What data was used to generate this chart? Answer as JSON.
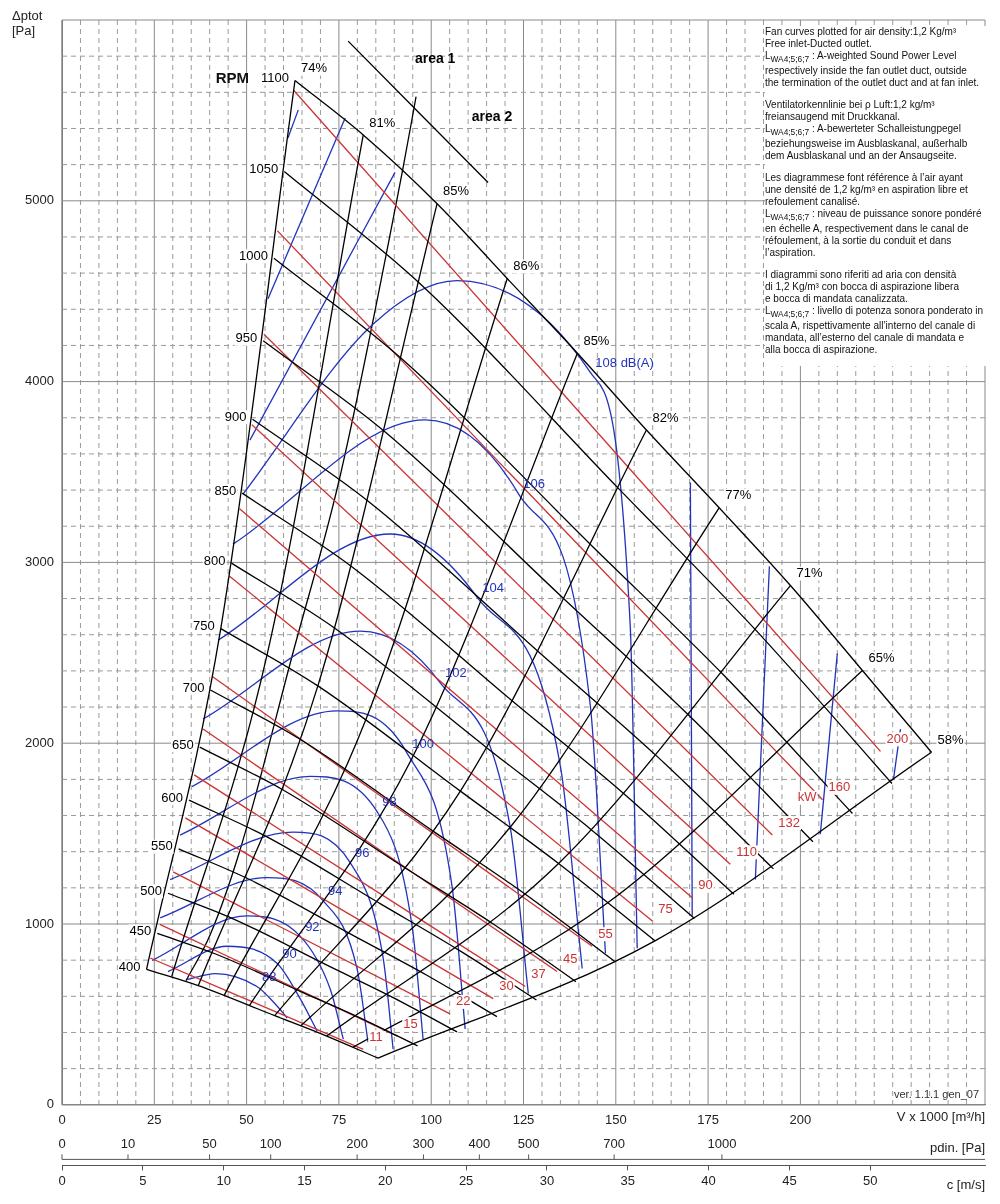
{
  "chart_data": {
    "type": "line",
    "xlabel": "V x 1000 [m³/h]",
    "ylabel": "Δptot\n[Pa]",
    "x2label": "c [m/s]",
    "xlim": [
      0,
      250
    ],
    "ylim": [
      0,
      6000
    ],
    "x2lim": [
      0,
      57.1
    ],
    "xticks": [
      0,
      {
        "value": 5,
        "label": null
      },
      {
        "value": 10,
        "label": null
      },
      {
        "value": 15,
        "label": null
      },
      {
        "value": 20,
        "label": null
      },
      25,
      {
        "value": 30,
        "label": null
      },
      {
        "value": 35,
        "label": null
      },
      {
        "value": 40,
        "label": null
      },
      {
        "value": 45,
        "label": null
      },
      50,
      {
        "value": 55,
        "label": null
      },
      {
        "value": 60,
        "label": null
      },
      {
        "value": 65,
        "label": null
      },
      {
        "value": 70,
        "label": null
      },
      75,
      {
        "value": 80,
        "label": null
      },
      {
        "value": 85,
        "label": null
      },
      {
        "value": 90,
        "label": null
      },
      {
        "value": 95,
        "label": null
      },
      100,
      {
        "value": 105,
        "label": null
      },
      {
        "value": 110,
        "label": null
      },
      {
        "value": 115,
        "label": null
      },
      {
        "value": 120,
        "label": null
      },
      125,
      {
        "value": 130,
        "label": null
      },
      {
        "value": 135,
        "label": null
      },
      {
        "value": 140,
        "label": null
      },
      {
        "value": 145,
        "label": null
      },
      150,
      {
        "value": 155,
        "label": null
      },
      {
        "value": 160,
        "label": null
      },
      {
        "value": 165,
        "label": null
      },
      {
        "value": 170,
        "label": null
      },
      175,
      {
        "value": 180,
        "label": null
      },
      {
        "value": 185,
        "label": null
      },
      {
        "value": 190,
        "label": null
      },
      {
        "value": 195,
        "label": null
      },
      200,
      {
        "value": 205,
        "label": null
      },
      {
        "value": 210,
        "label": null
      },
      {
        "value": 215,
        "label": null
      },
      {
        "value": 220,
        "label": null
      },
      {
        "value": 225,
        "label": null
      },
      {
        "value": 230,
        "label": null
      },
      {
        "value": 235,
        "label": null
      },
      {
        "value": 240,
        "label": null
      },
      {
        "value": 245,
        "label": null
      }
    ],
    "yticks": [
      0,
      {
        "value": 200,
        "label": null
      },
      {
        "value": 400,
        "label": null
      },
      {
        "value": 600,
        "label": null
      },
      {
        "value": 800,
        "label": null
      },
      1000,
      {
        "value": 1200,
        "label": null
      },
      {
        "value": 1400,
        "label": null
      },
      {
        "value": 1600,
        "label": null
      },
      {
        "value": 1800,
        "label": null
      },
      2000,
      {
        "value": 2200,
        "label": null
      },
      {
        "value": 2400,
        "label": null
      },
      {
        "value": 2600,
        "label": null
      },
      {
        "value": 2800,
        "label": null
      },
      3000,
      {
        "value": 3200,
        "label": null
      },
      {
        "value": 3400,
        "label": null
      },
      {
        "value": 3600,
        "label": null
      },
      {
        "value": 3800,
        "label": null
      },
      4000,
      {
        "value": 4200,
        "label": null
      },
      {
        "value": 4400,
        "label": null
      },
      {
        "value": 4600,
        "label": null
      },
      {
        "value": 4800,
        "label": null
      },
      5000,
      {
        "value": 5200,
        "label": null
      },
      {
        "value": 5400,
        "label": null
      },
      {
        "value": 5600,
        "label": null
      },
      {
        "value": 5800,
        "label": null
      }
    ],
    "x2ticks": [
      0,
      5,
      10,
      15,
      20,
      25,
      30,
      35,
      40,
      45,
      50
    ],
    "grid": true,
    "legend": false,
    "marker": "none",
    "series": [
      {
        "color": "#000000",
        "x": [
          22.9,
          36.9,
          57.6,
          71.7,
          85.6
        ],
        "values": [
          749,
          659,
          493,
          380,
          258
        ]
      },
      {
        "color": "#000000",
        "x": [
          25.8,
          41.6,
          64.8,
          80.7,
          96.3
        ],
        "values": [
          948,
          834,
          625,
          481,
          326
        ]
      },
      {
        "color": "#000000",
        "x": [
          28.7,
          46.2,
          71.9,
          89.7,
          107.0
        ],
        "values": [
          1170,
          1030,
          771,
          593,
          403
        ]
      },
      {
        "color": "#000000",
        "x": [
          31.6,
          50.8,
          79.2,
          98.7,
          117.8
        ],
        "values": [
          1416,
          1246,
          933,
          718,
          488
        ]
      },
      {
        "color": "#000000",
        "x": [
          34.4,
          55.4,
          86.4,
          107.6,
          128.5
        ],
        "values": [
          1685,
          1483,
          1110,
          854,
          580
        ]
      },
      {
        "color": "#000000",
        "x": [
          37.3,
          60.0,
          93.5,
          116.6,
          139.2
        ],
        "values": [
          1978,
          1740,
          1303,
          1003,
          681
        ]
      },
      {
        "color": "#000000",
        "x": [
          40.2,
          64.7,
          100.7,
          125.6,
          149.9
        ],
        "values": [
          2294,
          2019,
          1511,
          1163,
          790
        ]
      },
      {
        "color": "#000000",
        "x": [
          43.0,
          69.3,
          107.9,
          134.5,
          160.6
        ],
        "values": [
          2634,
          2317,
          1735,
          1335,
          907
        ]
      },
      {
        "color": "#000000",
        "x": [
          45.9,
          73.9,
          115.1,
          143.5,
          171.3
        ],
        "values": [
          2996,
          2636,
          1974,
          1519,
          1031
        ]
      },
      {
        "color": "#000000",
        "x": [
          48.8,
          78.5,
          122.3,
          152.5,
          182.0
        ],
        "values": [
          3383,
          2976,
          2228,
          1715,
          1164
        ]
      },
      {
        "color": "#000000",
        "x": [
          51.6,
          83.1,
          129.5,
          161.4,
          192.7
        ],
        "values": [
          3792,
          3336,
          2498,
          1923,
          1305
        ]
      },
      {
        "color": "#000000",
        "x": [
          54.5,
          87.7,
          136.7,
          170.4,
          203.4
        ],
        "values": [
          4226,
          3718,
          2784,
          2142,
          1455
        ]
      },
      {
        "color": "#000000",
        "x": [
          57.4,
          92.4,
          143.9,
          179.4,
          214.1
        ],
        "values": [
          4682,
          4119,
          3084,
          2373,
          1611
        ]
      },
      {
        "color": "#000000",
        "x": [
          60.2,
          97.0,
          151.1,
          188.3,
          224.8
        ],
        "values": [
          5162,
          4541,
          3401,
          2617,
          1777
        ]
      },
      {
        "color": "#000000",
        "x": [
          63.1,
          81.6,
          101.6,
          120.6,
          139.6,
          158.3,
          178.0,
          197.3,
          216.8,
          235.5
        ],
        "values": [
          5665,
          5364,
          4984,
          4570,
          4157,
          3732,
          3302,
          2872,
          2402,
          1950
        ]
      },
      {
        "color": "#000000",
        "x": [
          22.9,
          43.0,
          63.1
        ],
        "values": [
          749,
          2634,
          5665
        ]
      },
      {
        "color": "#000000",
        "x": [
          29.7,
          55.6,
          81.6
        ],
        "values": [
          709,
          2494,
          5364
        ]
      },
      {
        "color": "#000000",
        "x": [
          36.9,
          69.3,
          101.6
        ],
        "values": [
          659,
          2317,
          4984
        ]
      },
      {
        "color": "#000000",
        "x": [
          43.9,
          82.2,
          120.6
        ],
        "values": [
          604,
          2125,
          4570
        ]
      },
      {
        "color": "#000000",
        "x": [
          50.8,
          95.2,
          139.6
        ],
        "values": [
          550,
          1933,
          4157
        ]
      },
      {
        "color": "#000000",
        "x": [
          57.6,
          107.9,
          158.3
        ],
        "values": [
          493,
          1735,
          3732
        ]
      },
      {
        "color": "#000000",
        "x": [
          64.7,
          121.4,
          178.0
        ],
        "values": [
          437,
          1535,
          3302
        ]
      },
      {
        "color": "#000000",
        "x": [
          71.7,
          134.5,
          197.3
        ],
        "values": [
          380,
          1335,
          2872
        ]
      },
      {
        "color": "#000000",
        "x": [
          78.8,
          147.8,
          216.8
        ],
        "values": [
          318,
          1117,
          2402
        ]
      },
      {
        "color": "#000000",
        "x": [
          85.6,
          160.6,
          235.5
        ],
        "values": [
          258,
          907,
          1950
        ]
      },
      {
        "color": "#cc3333",
        "x": [
          62.8,
          221.7
        ],
        "values": [
          5610,
          1955
        ]
      },
      {
        "color": "#cc3333",
        "x": [
          58.3,
          206.0
        ],
        "values": [
          4835,
          1687
        ]
      },
      {
        "color": "#cc3333",
        "x": [
          54.7,
          192.4
        ],
        "values": [
          4262,
          1492
        ]
      },
      {
        "color": "#cc3333",
        "x": [
          51.4,
          181.0
        ],
        "values": [
          3762,
          1330
        ]
      },
      {
        "color": "#cc3333",
        "x": [
          48.1,
          170.7
        ],
        "values": [
          3297,
          1145
        ]
      },
      {
        "color": "#cc3333",
        "x": [
          45.3,
          159.9
        ],
        "values": [
          2925,
          1017
        ]
      },
      {
        "color": "#cc3333",
        "x": [
          40.8,
          143.6
        ],
        "values": [
          2368,
          877
        ]
      },
      {
        "color": "#cc3333",
        "x": [
          38.2,
          134.1
        ],
        "values": [
          2079,
          737
        ]
      },
      {
        "color": "#cc3333",
        "x": [
          35.8,
          125.5
        ],
        "values": [
          1825,
          654
        ]
      },
      {
        "color": "#cc3333",
        "x": [
          33.4,
          116.8
        ],
        "values": [
          1587,
          587
        ]
      },
      {
        "color": "#cc3333",
        "x": [
          30.1,
          105.1
        ],
        "values": [
          1288,
          503
        ]
      },
      {
        "color": "#cc3333",
        "x": [
          26.5,
          90.8
        ],
        "values": [
          998,
          380
        ]
      },
      {
        "color": "#cc3333",
        "x": [
          23.9,
          81.6
        ],
        "values": [
          812,
          307
        ]
      },
      {
        "color": "#2233bb",
        "x": [
          33.9,
          41.5,
          52.8,
          57.7,
          61.0
        ],
        "values": [
          693,
          726,
          654,
          559,
          480
        ]
      },
      {
        "color": "#2233bb",
        "x": [
          28.7,
          44.7,
          58.3,
          64.5,
          69.1
        ],
        "values": [
          737,
          877,
          782,
          587,
          408
        ]
      },
      {
        "color": "#2233bb",
        "x": [
          24.4,
          50.1,
          64.5,
          72.6,
          76.2
        ],
        "values": [
          799,
          1045,
          933,
          643,
          363
        ]
      },
      {
        "color": "#2233bb",
        "x": [
          26.6,
          55.6,
          70.7,
          79.9,
          82.9
        ],
        "values": [
          1034,
          1257,
          1129,
          754,
          346
        ]
      },
      {
        "color": "#2233bb",
        "x": [
          29.3,
          62.6,
          78.0,
          87.0,
          89.7
        ],
        "values": [
          1246,
          1508,
          1341,
          810,
          307
        ]
      },
      {
        "color": "#2233bb",
        "x": [
          32.0,
          67.2,
          85.4,
          94.9,
          97.8
        ],
        "values": [
          1492,
          1816,
          1620,
          978,
          363
        ]
      },
      {
        "color": "#2233bb",
        "x": [
          35.2,
          74.5,
          93.5,
          105.7,
          109.2
        ],
        "values": [
          1760,
          2179,
          1944,
          1201,
          419
        ]
      },
      {
        "color": "#2233bb",
        "x": [
          38.2,
          80.8,
          102.4,
          121.4,
          126.3
        ],
        "values": [
          2134,
          2620,
          2335,
          1536,
          615
        ]
      },
      {
        "color": "#2233bb",
        "x": [
          42.3,
          88.9,
          112.5,
          135.0,
          140.9
        ],
        "values": [
          2570,
          3157,
          2805,
          1872,
          754
        ]
      },
      {
        "color": "#2233bb",
        "x": [
          46.3,
          98.4,
          123.6,
          143.1,
          147.2
        ],
        "values": [
          3101,
          3788,
          3380,
          2207,
          838
        ]
      },
      {
        "color": "#2233bb",
        "x": [
          49.1,
          84.3,
          107.0,
          143.1,
          153.9,
          155.8
        ],
        "values": [
          3380,
          4319,
          4559,
          4051,
          2654,
          866
        ]
      },
      {
        "color": "#2233bb",
        "x": [
          50.9,
          90.2
        ],
        "values": [
          3676,
          5157
        ]
      },
      {
        "color": "#2233bb",
        "x": [
          55.8,
          76.7
        ],
        "values": [
          4458,
          5458
        ]
      },
      {
        "color": "#2233bb",
        "x": [
          61.2,
          64.0
        ],
        "values": [
          5347,
          5503
        ]
      },
      {
        "color": "#2233bb",
        "x": [
          170.2,
          170.7
        ],
        "values": [
          3442,
          1045
        ]
      },
      {
        "color": "#2233bb",
        "x": [
          191.6,
          187.8
        ],
        "values": [
          2978,
          1246
        ]
      },
      {
        "color": "#2233bb",
        "x": [
          210.0,
          205.4
        ],
        "values": [
          2497,
          1497
        ]
      },
      {
        "color": "#2233bb",
        "x": [
          227.1,
          225.2
        ],
        "values": [
          2078,
          1799
        ]
      },
      {
        "color": "#000000",
        "x": [
          33.6,
          40.1,
          48.2,
          62.6,
          75.3,
          92.4,
          95.9
        ],
        "values": [
          687,
          939,
          1408,
          2503,
          3475,
          5185,
          5576
        ]
      },
      {
        "color": "#000000",
        "x": [
          77.5,
          115.4
        ],
        "values": [
          5883,
          5101
        ]
      }
    ],
    "annotations": [
      {
        "text": "1100",
        "x": 63.1,
        "y": 5665
      },
      {
        "text": "1050",
        "x": 60.2,
        "y": 5162
      },
      {
        "text": "1000",
        "x": 57.4,
        "y": 4682
      },
      {
        "text": "950",
        "x": 54.5,
        "y": 4226
      },
      {
        "text": "900",
        "x": 51.6,
        "y": 3792
      },
      {
        "text": "850",
        "x": 48.8,
        "y": 3383
      },
      {
        "text": "800",
        "x": 45.9,
        "y": 2996
      },
      {
        "text": "750",
        "x": 43.0,
        "y": 2634
      },
      {
        "text": "700",
        "x": 40.2,
        "y": 2294
      },
      {
        "text": "650",
        "x": 37.3,
        "y": 1978
      },
      {
        "text": "600",
        "x": 34.4,
        "y": 1685
      },
      {
        "text": "550",
        "x": 31.6,
        "y": 1416
      },
      {
        "text": "500",
        "x": 28.7,
        "y": 1170
      },
      {
        "text": "450",
        "x": 25.8,
        "y": 948
      },
      {
        "text": "400",
        "x": 22.9,
        "y": 749
      },
      {
        "text": "74%",
        "x": 63.1,
        "y": 5665
      },
      {
        "text": "81%",
        "x": 81.6,
        "y": 5364
      },
      {
        "text": "85%",
        "x": 101.6,
        "y": 4984
      },
      {
        "text": "86%",
        "x": 120.6,
        "y": 4570
      },
      {
        "text": "85%",
        "x": 139.6,
        "y": 4157
      },
      {
        "text": "82%",
        "x": 158.3,
        "y": 3732
      },
      {
        "text": "77%",
        "x": 178.0,
        "y": 3302
      },
      {
        "text": "71%",
        "x": 197.3,
        "y": 2872
      },
      {
        "text": "65%",
        "x": 216.8,
        "y": 2402
      },
      {
        "text": "58%",
        "x": 235.5,
        "y": 1950
      },
      {
        "text": "88",
        "x": 52.8,
        "y": 654
      },
      {
        "text": "90",
        "x": 58.3,
        "y": 782
      },
      {
        "text": "92",
        "x": 64.5,
        "y": 933
      },
      {
        "text": "94",
        "x": 70.7,
        "y": 1129
      },
      {
        "text": "96",
        "x": 78.0,
        "y": 1341
      },
      {
        "text": "98",
        "x": 85.4,
        "y": 1620
      },
      {
        "text": "100",
        "x": 93.5,
        "y": 1944
      },
      {
        "text": "102",
        "x": 102.4,
        "y": 2335
      },
      {
        "text": "104",
        "x": 112.5,
        "y": 2805
      },
      {
        "text": "106",
        "x": 123.6,
        "y": 3380
      },
      {
        "text": "108 dB(A)",
        "x": 143.1,
        "y": 4051
      },
      {
        "text": "11",
        "x": 81.6,
        "y": 307
      },
      {
        "text": "15",
        "x": 90.8,
        "y": 380
      },
      {
        "text": "22",
        "x": 105.1,
        "y": 503
      },
      {
        "text": "30",
        "x": 116.8,
        "y": 587
      },
      {
        "text": "37",
        "x": 125.5,
        "y": 654
      },
      {
        "text": "45",
        "x": 134.1,
        "y": 737
      },
      {
        "text": "55",
        "x": 143.6,
        "y": 877
      },
      {
        "text": "75",
        "x": 159.9,
        "y": 1017
      },
      {
        "text": "90",
        "x": 170.7,
        "y": 1145
      },
      {
        "text": "110",
        "x": 181.0,
        "y": 1330
      },
      {
        "text": "132",
        "x": 192.4,
        "y": 1492
      },
      {
        "text": "kW",
        "x": 206.0,
        "y": 1687
      },
      {
        "text": "160",
        "x": 206.0,
        "y": 1687
      },
      {
        "text": "200",
        "x": 221.7,
        "y": 1955
      },
      "Fan curves plotted for air density:1,2 Kg/m³\nFree inlet-Ducted outlet.\nL$_{WA4;5;6;7}$ : A-weighted Sound Power Level\nrespectively inside the fan outlet duct, outside\nthe termination of the outlet duct and at fan inlet.",
      "Ventilatorkennlinie bei ρ Luft:1,2 kg/m³\nfreiansaugend mit Druckkanal.\nL$_{WA4;5;6;7}$ : A-bewerteter Schalleistungpegel\nbeziehungsweise im Ausblaskanal, außerhalb\ndem Ausblaskanal und an der Ansaugseite.",
      "Les diagrammese font référence à l’air ayant\nune densité de 1,2 kg/m³ en aspiration libre et\nrefoulement canalisé.\nL$_{WA4;5;6;7}$ : niveau de puissance sonore pondéré\nen échelle A, respectivement dans le canal de\nréfoulement, à la sortie du conduit et dans\nl’aspiration.",
      "I diagrammi sono riferiti ad aria con densità\ndi 1,2 Kg/m³ con bocca di aspirazione libera\ne bocca di mandata canalizzata.\nL$_{WA4;5;6;7}$ : livello di potenza sonora ponderato in\nscala A, rispettivamente all’interno del canale di\nmandata, all’esterno del canale di mandata e\nalla bocca di aspirazione.",
      "ver. 1.1.1 gen_07",
      "RPM",
      "area 1",
      "area 2",
      "pdin. [Pa]",
      "0",
      "10",
      "50",
      "100",
      "200",
      "300",
      "400",
      "500",
      "700",
      "1000"
    ]
  }
}
